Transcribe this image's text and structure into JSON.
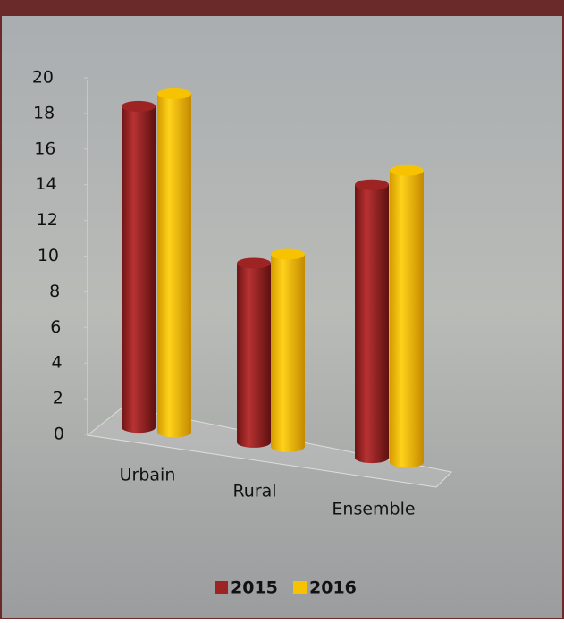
{
  "chart_data": {
    "type": "bar3d",
    "categories": [
      "Urbain",
      "Rural",
      "Ensemble"
    ],
    "series": [
      {
        "name": "2015",
        "color": "#9e2424",
        "values": [
          18.4,
          9.6,
          14.0
        ]
      },
      {
        "name": "2016",
        "color": "#f7c300",
        "values": [
          19.1,
          10.1,
          14.8
        ]
      }
    ],
    "ylim": [
      0,
      20
    ],
    "yticks": [
      0,
      2,
      4,
      6,
      8,
      10,
      12,
      14,
      16,
      18,
      20
    ],
    "legend": "bottom"
  }
}
